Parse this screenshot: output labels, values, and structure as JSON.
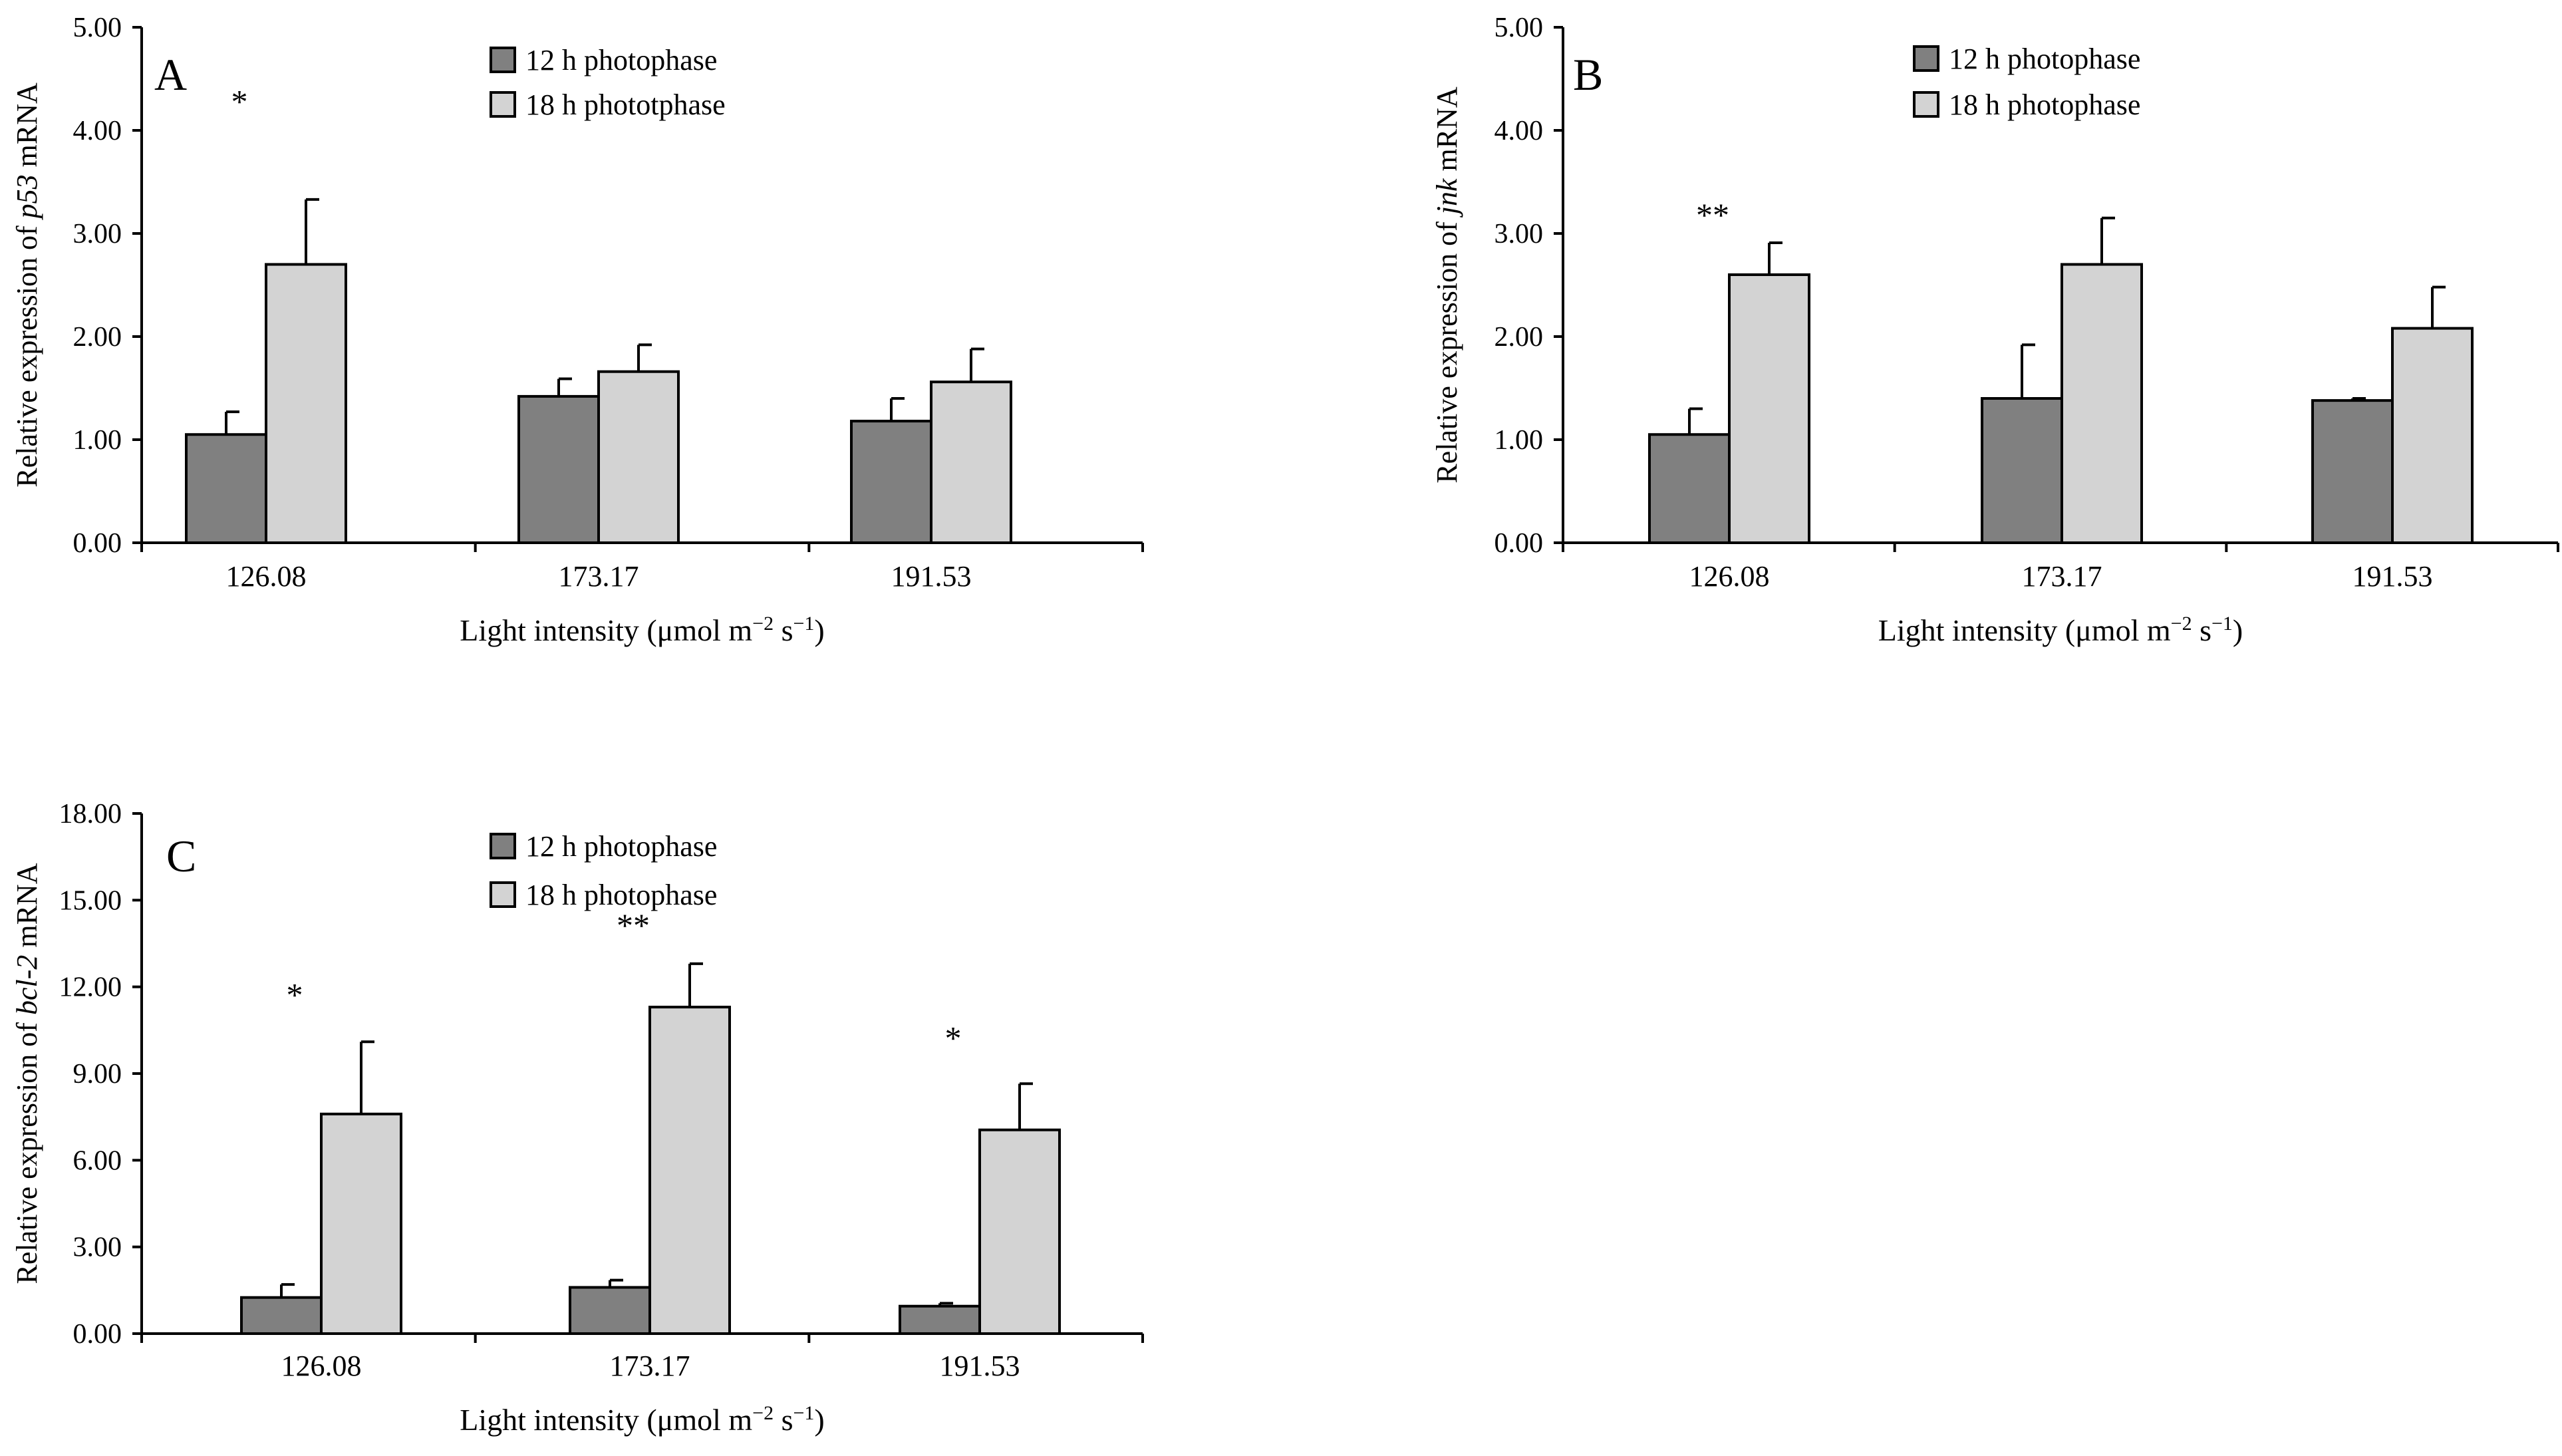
{
  "colors": {
    "series_12h": "#808080",
    "series_18h": "#d3d3d3",
    "axis": "#000000"
  },
  "chart_data": [
    {
      "panel": "A",
      "type": "bar",
      "title": "",
      "xlabel": "Light intensity (μmol m−2 s−1)",
      "ylabel_pre": "Relative expression of ",
      "ylabel_gene": "p53",
      "ylabel_post": " mRNA",
      "ylim": [
        0,
        5
      ],
      "yticks": [
        0,
        1,
        2,
        3,
        4,
        5
      ],
      "ytick_labels": [
        "0.00",
        "1.00",
        "2.00",
        "3.00",
        "4.00",
        "5.00"
      ],
      "categories": [
        "126.08",
        "173.17",
        "191.53"
      ],
      "series": [
        {
          "name": "12 h photophase",
          "values": [
            1.05,
            1.42,
            1.18
          ],
          "errors": [
            0.22,
            0.17,
            0.22
          ]
        },
        {
          "name": "18 h phototphase",
          "values": [
            2.7,
            1.66,
            1.56
          ],
          "errors": [
            0.63,
            0.26,
            0.32
          ]
        }
      ],
      "significance": [
        {
          "category_index": 0,
          "label": "*",
          "y": 4.3
        }
      ]
    },
    {
      "panel": "B",
      "type": "bar",
      "title": "",
      "xlabel": "Light intensity (μmol m−2 s−1)",
      "ylabel_pre": "Relative expression of ",
      "ylabel_gene": "jnk",
      "ylabel_post": " mRNA",
      "ylim": [
        0,
        5
      ],
      "yticks": [
        0,
        1,
        2,
        3,
        4,
        5
      ],
      "ytick_labels": [
        "0.00",
        "1.00",
        "2.00",
        "3.00",
        "4.00",
        "5.00"
      ],
      "categories": [
        "126.08",
        "173.17",
        "191.53"
      ],
      "series": [
        {
          "name": "12 h photophase",
          "values": [
            1.05,
            1.4,
            1.38
          ],
          "errors": [
            0.25,
            0.52,
            0.02
          ]
        },
        {
          "name": "18 h photophase",
          "values": [
            2.6,
            2.7,
            2.08
          ],
          "errors": [
            0.31,
            0.45,
            0.4
          ]
        }
      ],
      "significance": [
        {
          "category_index": 0,
          "label": "**",
          "y": 3.2
        }
      ]
    },
    {
      "panel": "C",
      "type": "bar",
      "title": "",
      "xlabel": "Light intensity (μmol m−2 s−1)",
      "ylabel_pre": "Relative expression of ",
      "ylabel_gene": "bcl-2",
      "ylabel_post": " mRNA",
      "ylim": [
        0,
        18
      ],
      "yticks": [
        0,
        3,
        6,
        9,
        12,
        15,
        18
      ],
      "ytick_labels": [
        "0.00",
        "3.00",
        "6.00",
        "9.00",
        "12.00",
        "15.00",
        "18.00"
      ],
      "categories": [
        "126.08",
        "173.17",
        "191.53"
      ],
      "series": [
        {
          "name": "12 h photophase",
          "values": [
            1.25,
            1.6,
            0.95
          ],
          "errors": [
            0.45,
            0.25,
            0.1
          ]
        },
        {
          "name": "18 h photophase",
          "values": [
            7.6,
            11.3,
            7.05
          ],
          "errors": [
            2.5,
            1.5,
            1.6
          ]
        }
      ],
      "significance": [
        {
          "category_index": 0,
          "label": "*",
          "y": 11.8
        },
        {
          "category_index": 1,
          "label": "**",
          "y": 14.2
        },
        {
          "category_index": 2,
          "label": "*",
          "y": 10.3
        }
      ]
    }
  ]
}
